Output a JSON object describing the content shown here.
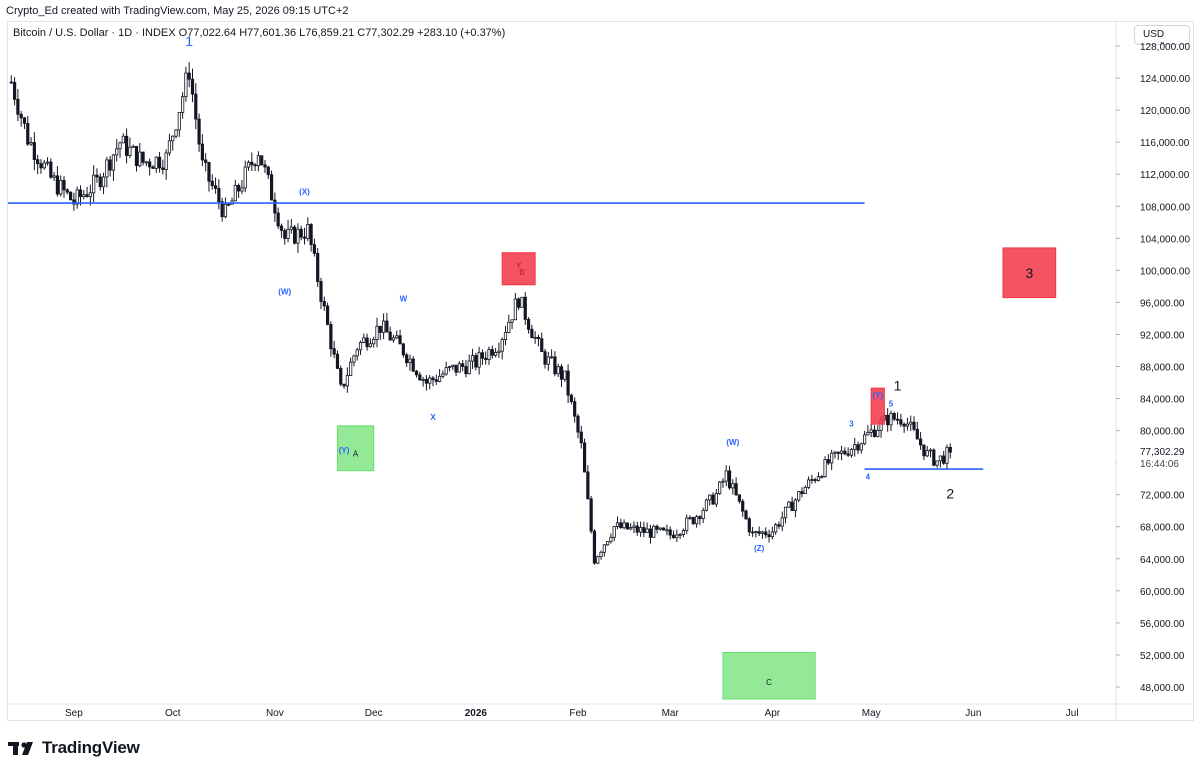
{
  "credit": "Crypto_Ed created with TradingView.com, May 25, 2026 09:15 UTC+2",
  "symbol_line": "Bitcoin / U.S. Dollar · 1D · INDEX  O77,022.64  H77,601.36  L76,859.21  C77,302.29  +283.10 (+0.37%)",
  "currency": "USD",
  "brand": "TradingView",
  "colors": {
    "up": "#131722",
    "down": "#131722",
    "line": "#2962ff",
    "label_blue": "#2962ff",
    "box_red": "#f23645",
    "box_green": "#66e06b",
    "price_tag": "#131722"
  },
  "chart_data": {
    "type": "candlestick",
    "y_axis": {
      "ticks": [
        48000,
        52000,
        56000,
        60000,
        64000,
        68000,
        72000,
        76000,
        80000,
        84000,
        88000,
        92000,
        96000,
        100000,
        104000,
        108000,
        112000,
        116000,
        120000,
        124000,
        128000
      ],
      "tick_labels": [
        "48,000.00",
        "52,000.00",
        "56,000.00",
        "60,000.00",
        "64,000.00",
        "68,000.00",
        "72,000.00",
        "76,000.00",
        "80,000.00",
        "84,000.00",
        "88,000.00",
        "92,000.00",
        "96,000.00",
        "100,000.00",
        "104,000.00",
        "108,000.00",
        "112,000.00",
        "116,000.00",
        "120,000.00",
        "124,000.00",
        "128,000.00"
      ],
      "range": [
        46000,
        131000
      ]
    },
    "x_axis": {
      "labels": [
        {
          "text": "Sep",
          "date": "2025-09-01"
        },
        {
          "text": "Oct",
          "date": "2025-10-01"
        },
        {
          "text": "Nov",
          "date": "2025-11-01"
        },
        {
          "text": "Dec",
          "date": "2025-12-01"
        },
        {
          "text": "2026",
          "date": "2026-01-01"
        },
        {
          "text": "Feb",
          "date": "2026-02-01"
        },
        {
          "text": "Mar",
          "date": "2026-03-01"
        },
        {
          "text": "Apr",
          "date": "2026-04-01"
        },
        {
          "text": "May",
          "date": "2026-05-01"
        },
        {
          "text": "Jun",
          "date": "2026-06-01"
        },
        {
          "text": "Jul",
          "date": "2026-07-01"
        }
      ],
      "range": [
        "2025-08-12",
        "2026-07-14"
      ]
    },
    "last_price": {
      "value": 77302.29,
      "label": "77,302.29",
      "countdown": "16:44:06"
    },
    "series_anchors": [
      {
        "date": "2025-08-13",
        "close": 123500
      },
      {
        "date": "2025-08-18",
        "close": 116500
      },
      {
        "date": "2025-08-25",
        "close": 111500
      },
      {
        "date": "2025-09-01",
        "close": 108500
      },
      {
        "date": "2025-09-08",
        "close": 111000
      },
      {
        "date": "2025-09-15",
        "close": 116000
      },
      {
        "date": "2025-09-22",
        "close": 113500
      },
      {
        "date": "2025-09-29",
        "close": 114000
      },
      {
        "date": "2025-10-06",
        "close": 125000
      },
      {
        "date": "2025-10-10",
        "close": 113000
      },
      {
        "date": "2025-10-17",
        "close": 107000
      },
      {
        "date": "2025-10-27",
        "close": 115000
      },
      {
        "date": "2025-11-04",
        "close": 104000
      },
      {
        "date": "2025-11-11",
        "close": 105000
      },
      {
        "date": "2025-11-17",
        "close": 93000
      },
      {
        "date": "2025-11-21",
        "close": 85000
      },
      {
        "date": "2025-11-26",
        "close": 90500
      },
      {
        "date": "2025-12-03",
        "close": 93000
      },
      {
        "date": "2025-12-10",
        "close": 90000
      },
      {
        "date": "2025-12-17",
        "close": 86000
      },
      {
        "date": "2025-12-24",
        "close": 87500
      },
      {
        "date": "2026-01-01",
        "close": 88500
      },
      {
        "date": "2026-01-08",
        "close": 91000
      },
      {
        "date": "2026-01-14",
        "close": 96500
      },
      {
        "date": "2026-01-21",
        "close": 89500
      },
      {
        "date": "2026-01-28",
        "close": 86500
      },
      {
        "date": "2026-02-02",
        "close": 78000
      },
      {
        "date": "2026-02-06",
        "close": 64000
      },
      {
        "date": "2026-02-12",
        "close": 68000
      },
      {
        "date": "2026-02-20",
        "close": 67500
      },
      {
        "date": "2026-03-01",
        "close": 67000
      },
      {
        "date": "2026-03-08",
        "close": 69000
      },
      {
        "date": "2026-03-15",
        "close": 72000
      },
      {
        "date": "2026-03-18",
        "close": 74500
      },
      {
        "date": "2026-03-26",
        "close": 67000
      },
      {
        "date": "2026-04-01",
        "close": 67500
      },
      {
        "date": "2026-04-10",
        "close": 72500
      },
      {
        "date": "2026-04-18",
        "close": 76000
      },
      {
        "date": "2026-04-27",
        "close": 78500
      },
      {
        "date": "2026-05-06",
        "close": 81500
      },
      {
        "date": "2026-05-11",
        "close": 81500
      },
      {
        "date": "2026-05-18",
        "close": 77000
      },
      {
        "date": "2026-05-21",
        "close": 76200
      },
      {
        "date": "2026-05-25",
        "close": 77302.29
      }
    ],
    "annotations": {
      "lines": [
        {
          "from": [
            "2025-08-12",
            108400
          ],
          "to": [
            "2026-04-29",
            108400
          ]
        },
        {
          "from": [
            "2026-04-29",
            75200
          ],
          "to": [
            "2026-06-04",
            75200
          ]
        }
      ],
      "boxes": [
        {
          "color": "red",
          "from": [
            "2026-01-09",
            98200
          ],
          "to": [
            "2026-01-19",
            102200
          ]
        },
        {
          "color": "red",
          "from": [
            "2026-05-01",
            80800
          ],
          "to": [
            "2026-05-05",
            85300
          ]
        },
        {
          "color": "red",
          "from": [
            "2026-06-10",
            96600
          ],
          "to": [
            "2026-06-26",
            102800
          ],
          "label": "3"
        },
        {
          "color": "green",
          "from": [
            "2025-11-20",
            75000
          ],
          "to": [
            "2025-12-01",
            80600
          ],
          "label": "A"
        },
        {
          "color": "green",
          "from": [
            "2026-03-17",
            46500
          ],
          "to": [
            "2026-04-14",
            52300
          ],
          "label": "C"
        }
      ],
      "labels": [
        {
          "text": "1",
          "date": "2025-10-06",
          "price": 128000,
          "style": "blue-large"
        },
        {
          "text": "(X)",
          "date": "2025-11-10",
          "price": 109500,
          "style": "blue"
        },
        {
          "text": "(W)",
          "date": "2025-11-04",
          "price": 97000,
          "style": "blue"
        },
        {
          "text": "W",
          "date": "2025-12-10",
          "price": 96100,
          "style": "blue"
        },
        {
          "text": "X",
          "date": "2025-12-19",
          "price": 81300,
          "style": "blue"
        },
        {
          "text": "(Y)",
          "date": "2025-11-22",
          "price": 77200,
          "style": "blue"
        },
        {
          "text": "Y",
          "date": "2026-01-14",
          "price": 100300,
          "style": "red"
        },
        {
          "text": "B",
          "date": "2026-01-15",
          "price": 99400,
          "style": "red"
        },
        {
          "text": "(W)",
          "date": "2026-03-20",
          "price": 78200,
          "style": "blue"
        },
        {
          "text": "(Z)",
          "date": "2026-03-28",
          "price": 65000,
          "style": "blue"
        },
        {
          "text": "3",
          "date": "2026-04-25",
          "price": 80500,
          "style": "blue"
        },
        {
          "text": "4",
          "date": "2026-04-30",
          "price": 73900,
          "style": "blue"
        },
        {
          "text": "(Y)",
          "date": "2026-05-03",
          "price": 84100,
          "style": "blue"
        },
        {
          "text": "5",
          "date": "2026-05-07",
          "price": 83000,
          "style": "blue"
        },
        {
          "text": "1",
          "date": "2026-05-09",
          "price": 85000,
          "style": "black"
        },
        {
          "text": "2",
          "date": "2026-05-25",
          "price": 71500,
          "style": "black"
        }
      ]
    }
  }
}
